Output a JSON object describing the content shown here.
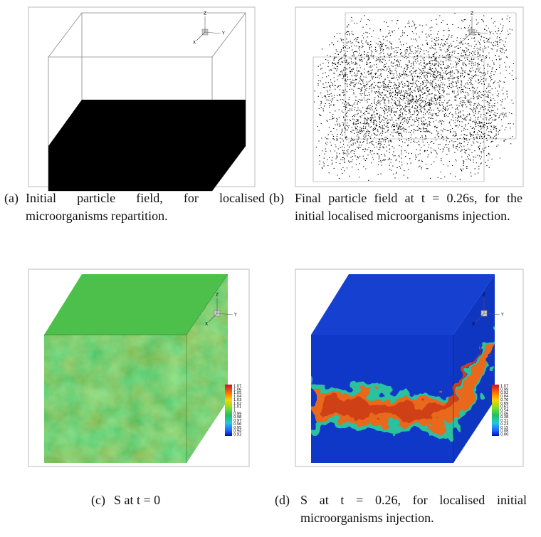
{
  "triad": {
    "z": "Z",
    "y": "Y",
    "x": "X"
  },
  "panels": [
    {
      "label": "(a)",
      "caption": "Initial particle field, for localised microorganisms repartition."
    },
    {
      "label": "(b)",
      "caption": "Final particle field at t = 0.26s, for the initial localised microorganisms injection."
    },
    {
      "label": "(c)",
      "caption": "S at t = 0",
      "colorbar": [
        "1.07",
        "1.06",
        "1.05",
        "1.04",
        "1.03",
        "1.02",
        "1.01",
        "1",
        "0.99",
        "0.98",
        "0.97",
        "0.96",
        "0.95",
        "0.94",
        "0.93"
      ]
    },
    {
      "label": "(d)",
      "caption": "S at t = 0.26, for localised initial microorganisms injection.",
      "colorbar": [
        "1.07",
        "0.99",
        "0.92",
        "0.84",
        "0.76",
        "0.69",
        "0.61",
        "0.54",
        "0.46",
        "0.38",
        "0.31",
        "0.23",
        "0.15",
        "0.08",
        "0.00"
      ]
    }
  ]
}
